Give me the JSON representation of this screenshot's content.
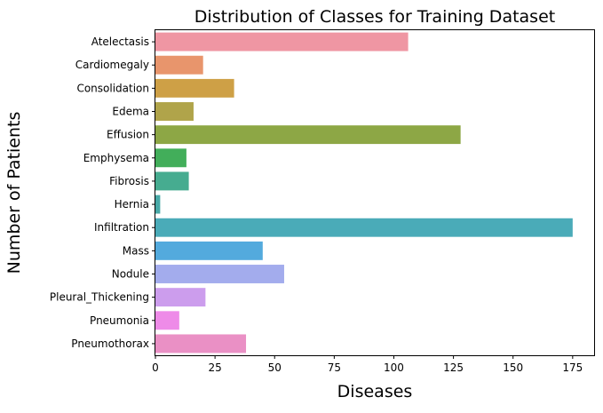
{
  "chart_data": {
    "type": "bar",
    "orientation": "horizontal",
    "title": "Distribution of Classes for Training Dataset",
    "xlabel": "Diseases",
    "ylabel": "Number of Patients",
    "xlim": [
      0,
      184
    ],
    "xticks": [
      0,
      25,
      50,
      75,
      100,
      125,
      150,
      175
    ],
    "grid": false,
    "legend": "none",
    "categories": [
      "Atelectasis",
      "Cardiomegaly",
      "Consolidation",
      "Edema",
      "Effusion",
      "Emphysema",
      "Fibrosis",
      "Hernia",
      "Infiltration",
      "Mass",
      "Nodule",
      "Pleural_Thickening",
      "Pneumonia",
      "Pneumothorax"
    ],
    "values": [
      106,
      20,
      33,
      16,
      128,
      13,
      14,
      2,
      175,
      45,
      54,
      21,
      10,
      38
    ],
    "colors": [
      "#ef96a3",
      "#e8956c",
      "#cea046",
      "#b0a44a",
      "#8da745",
      "#42ae5a",
      "#46ac90",
      "#48a9a7",
      "#4aabb8",
      "#53aadd",
      "#a3aced",
      "#cc9ded",
      "#ee8be8",
      "#ea90c5"
    ]
  }
}
